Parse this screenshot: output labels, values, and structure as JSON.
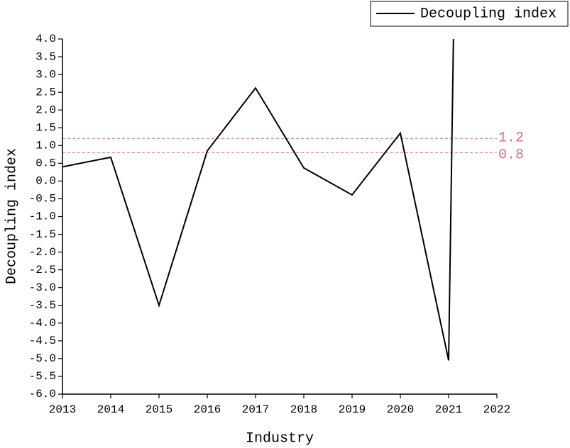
{
  "chart_data": {
    "type": "line",
    "x_label": "Industry",
    "y_label": "Decoupling index",
    "x": [
      2013,
      2014,
      2015,
      2016,
      2017,
      2018,
      2019,
      2020,
      2021,
      2021.1
    ],
    "series": [
      {
        "name": "Decoupling index",
        "color": "#000000",
        "values": [
          0.4,
          0.67,
          -3.5,
          0.85,
          2.62,
          0.37,
          -0.39,
          1.35,
          -5.05,
          4.0
        ]
      }
    ],
    "xlim": [
      2013,
      2022
    ],
    "xticks": [
      2013,
      2014,
      2015,
      2016,
      2017,
      2018,
      2019,
      2020,
      2021,
      2022
    ],
    "ylim": [
      -6,
      4
    ],
    "yticks": [
      {
        "value": 4,
        "label": "4.0"
      },
      {
        "value": 3.5,
        "label": "3.5"
      },
      {
        "value": 3,
        "label": "3.0"
      },
      {
        "value": 2.5,
        "label": "2.5"
      },
      {
        "value": 2,
        "label": "2.0"
      },
      {
        "value": 1.5,
        "label": "1.5"
      },
      {
        "value": 1,
        "label": "1.0"
      },
      {
        "value": 0.5,
        "label": "0.5"
      },
      {
        "value": 0,
        "label": "0.0"
      },
      {
        "value": -0.5,
        "label": "-0.5"
      },
      {
        "value": -1,
        "label": "-1.0"
      },
      {
        "value": -1.5,
        "label": "-1.5"
      },
      {
        "value": -2,
        "label": "-2.0"
      },
      {
        "value": -2.5,
        "label": "-2.5"
      },
      {
        "value": -3,
        "label": "-3.0"
      },
      {
        "value": -3.5,
        "label": "-3.5"
      },
      {
        "value": -4,
        "label": "-4.0"
      },
      {
        "value": -4.5,
        "label": "-4.5"
      },
      {
        "value": -5,
        "label": "-5.0"
      },
      {
        "value": -5.5,
        "label": "-5.5"
      },
      {
        "value": -6,
        "label": "-6.0"
      }
    ],
    "reference_lines": [
      {
        "value": 1.2,
        "color": "#d9707a"
      },
      {
        "value": 0.8,
        "color": "#d9707a"
      }
    ],
    "legend": "top-right"
  }
}
